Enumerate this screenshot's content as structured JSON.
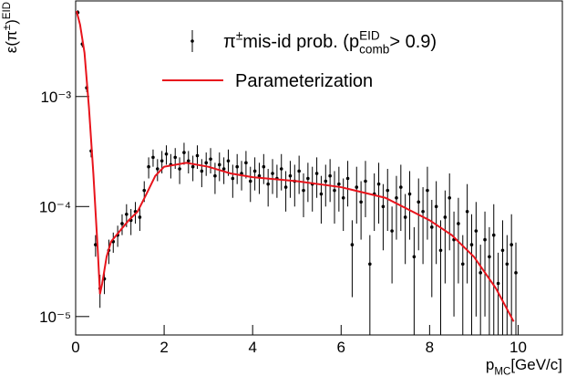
{
  "chart_data": {
    "type": "scatter",
    "x_label": [
      "p",
      "MC",
      "[GeV/c]"
    ],
    "y_label": [
      "ε(π",
      "±",
      ")",
      "EID"
    ],
    "xlim": [
      0,
      11
    ],
    "ylim": [
      6.8e-06,
      0.0074
    ],
    "log_y": true,
    "xticks": [
      0,
      2,
      4,
      6,
      8,
      10
    ],
    "yticks": [
      {
        "value": 1e-05,
        "label": "10⁻⁵"
      },
      {
        "value": 0.0001,
        "label": "10⁻⁴"
      },
      {
        "value": 0.001,
        "label": "10⁻³"
      }
    ],
    "series": [
      {
        "type": "errorbar",
        "name": [
          "π",
          "±",
          " mis-id prob. (p",
          "EID",
          "comb",
          " > 0.9)"
        ],
        "color": "#000000",
        "x": [
          0.05,
          0.15,
          0.25,
          0.35,
          0.45,
          0.55,
          0.65,
          0.75,
          0.85,
          0.95,
          1.05,
          1.15,
          1.25,
          1.35,
          1.45,
          1.55,
          1.65,
          1.75,
          1.85,
          1.95,
          2.05,
          2.15,
          2.25,
          2.35,
          2.45,
          2.55,
          2.65,
          2.75,
          2.85,
          2.95,
          3.05,
          3.15,
          3.25,
          3.35,
          3.45,
          3.55,
          3.65,
          3.75,
          3.85,
          3.95,
          4.05,
          4.15,
          4.25,
          4.35,
          4.45,
          4.55,
          4.65,
          4.75,
          4.85,
          4.95,
          5.05,
          5.15,
          5.25,
          5.35,
          5.45,
          5.55,
          5.65,
          5.75,
          5.85,
          5.95,
          6.05,
          6.15,
          6.25,
          6.35,
          6.45,
          6.55,
          6.65,
          6.75,
          6.85,
          6.95,
          7.05,
          7.15,
          7.25,
          7.35,
          7.45,
          7.55,
          7.65,
          7.75,
          7.85,
          7.95,
          8.05,
          8.15,
          8.25,
          8.35,
          8.45,
          8.55,
          8.65,
          8.75,
          8.85,
          8.95,
          9.05,
          9.15,
          9.25,
          9.35,
          9.45,
          9.55,
          9.65,
          9.75,
          9.85,
          9.95
        ],
        "values": [
          0.0058,
          0.003,
          0.0012,
          0.00032,
          4.5e-05,
          1.8e-05,
          2.2e-05,
          4e-05,
          4.8e-05,
          5.5e-05,
          7e-05,
          8.5e-05,
          7.5e-05,
          9e-05,
          8e-05,
          0.00014,
          0.00023,
          0.00028,
          0.00022,
          0.00026,
          0.0003,
          0.00024,
          0.00028,
          0.00022,
          0.00031,
          0.00026,
          0.00023,
          0.00029,
          0.00021,
          0.00025,
          0.00027,
          0.00019,
          0.00024,
          0.00022,
          0.00026,
          0.00018,
          0.00023,
          0.0002,
          0.00025,
          0.00017,
          0.00021,
          0.00019,
          0.00023,
          0.00016,
          0.0002,
          0.00018,
          0.00022,
          0.00015,
          0.00019,
          0.00017,
          0.00021,
          0.00014,
          0.00018,
          0.00016,
          0.0002,
          0.00013,
          0.00017,
          0.00019,
          0.00014,
          0.00016,
          0.00012,
          0.00018,
          4.5e-05,
          0.00015,
          0.00011,
          0.00017,
          3e-05,
          0.00013,
          0.00016,
          0.0001,
          0.00014,
          6e-05,
          0.00012,
          0.00015,
          8e-05,
          0.00013,
          3.5e-05,
          0.00011,
          9e-05,
          0.00014,
          6.5e-05,
          0.0001,
          4e-05,
          8e-05,
          0.00012,
          5e-05,
          7e-05,
          3e-05,
          9e-05,
          4.5e-05,
          6e-05,
          2.5e-05,
          5e-05,
          3.5e-05,
          5.5e-05,
          2e-05,
          4e-05,
          3e-05,
          4.5e-05,
          2.5e-05
        ],
        "errors": [
          0.0003,
          0.0002,
          0.0001,
          4e-05,
          1e-05,
          6e-06,
          6e-06,
          1e-05,
          1e-05,
          1.2e-05,
          1.5e-05,
          2e-05,
          2e-05,
          2e-05,
          2e-05,
          3e-05,
          5e-05,
          5e-05,
          5e-05,
          6e-05,
          6e-05,
          6e-05,
          6e-05,
          6e-05,
          7e-05,
          6e-05,
          6e-05,
          7e-05,
          6e-05,
          6e-05,
          7e-05,
          6e-05,
          7e-05,
          6e-05,
          7e-05,
          6e-05,
          7e-05,
          6e-05,
          7e-05,
          6e-05,
          7e-05,
          6e-05,
          7e-05,
          6e-05,
          7e-05,
          6e-05,
          8e-05,
          6e-05,
          7e-05,
          7e-05,
          8e-05,
          6e-05,
          7e-05,
          7e-05,
          8e-05,
          6e-05,
          7e-05,
          8e-05,
          7e-05,
          7e-05,
          6e-05,
          8e-05,
          3e-05,
          8e-05,
          6e-05,
          9e-05,
          2.5e-05,
          7e-05,
          9e-05,
          6e-05,
          8e-05,
          4e-05,
          7e-05,
          9e-05,
          5e-05,
          8e-05,
          3e-05,
          7e-05,
          6e-05,
          9e-05,
          5e-05,
          7e-05,
          3.5e-05,
          6e-05,
          8e-05,
          4e-05,
          5e-05,
          2.5e-05,
          7e-05,
          4e-05,
          5e-05,
          2e-05,
          4e-05,
          3e-05,
          5e-05,
          1.8e-05,
          3.5e-05,
          2.5e-05,
          4e-05,
          2.2e-05
        ]
      },
      {
        "type": "line",
        "name": "Parameterization",
        "color": "#e8141c",
        "x": [
          0.02,
          0.1,
          0.2,
          0.3,
          0.4,
          0.5,
          0.55,
          0.6,
          0.7,
          0.8,
          1.0,
          1.2,
          1.4,
          1.6,
          1.8,
          2.0,
          2.5,
          3.0,
          3.5,
          4.0,
          5.0,
          6.0,
          7.0,
          8.0,
          8.5,
          9.0,
          9.5,
          9.9
        ],
        "values": [
          0.006,
          0.0045,
          0.0025,
          0.0008,
          0.0002,
          4e-05,
          1.6e-05,
          2e-05,
          3.5e-05,
          4.8e-05,
          6e-05,
          7.5e-05,
          9e-05,
          0.00013,
          0.00019,
          0.00023,
          0.00025,
          0.00023,
          0.0002,
          0.000185,
          0.00017,
          0.00015,
          0.00012,
          7.5e-05,
          5.5e-05,
          3.5e-05,
          1.8e-05,
          9e-06
        ]
      }
    ]
  }
}
